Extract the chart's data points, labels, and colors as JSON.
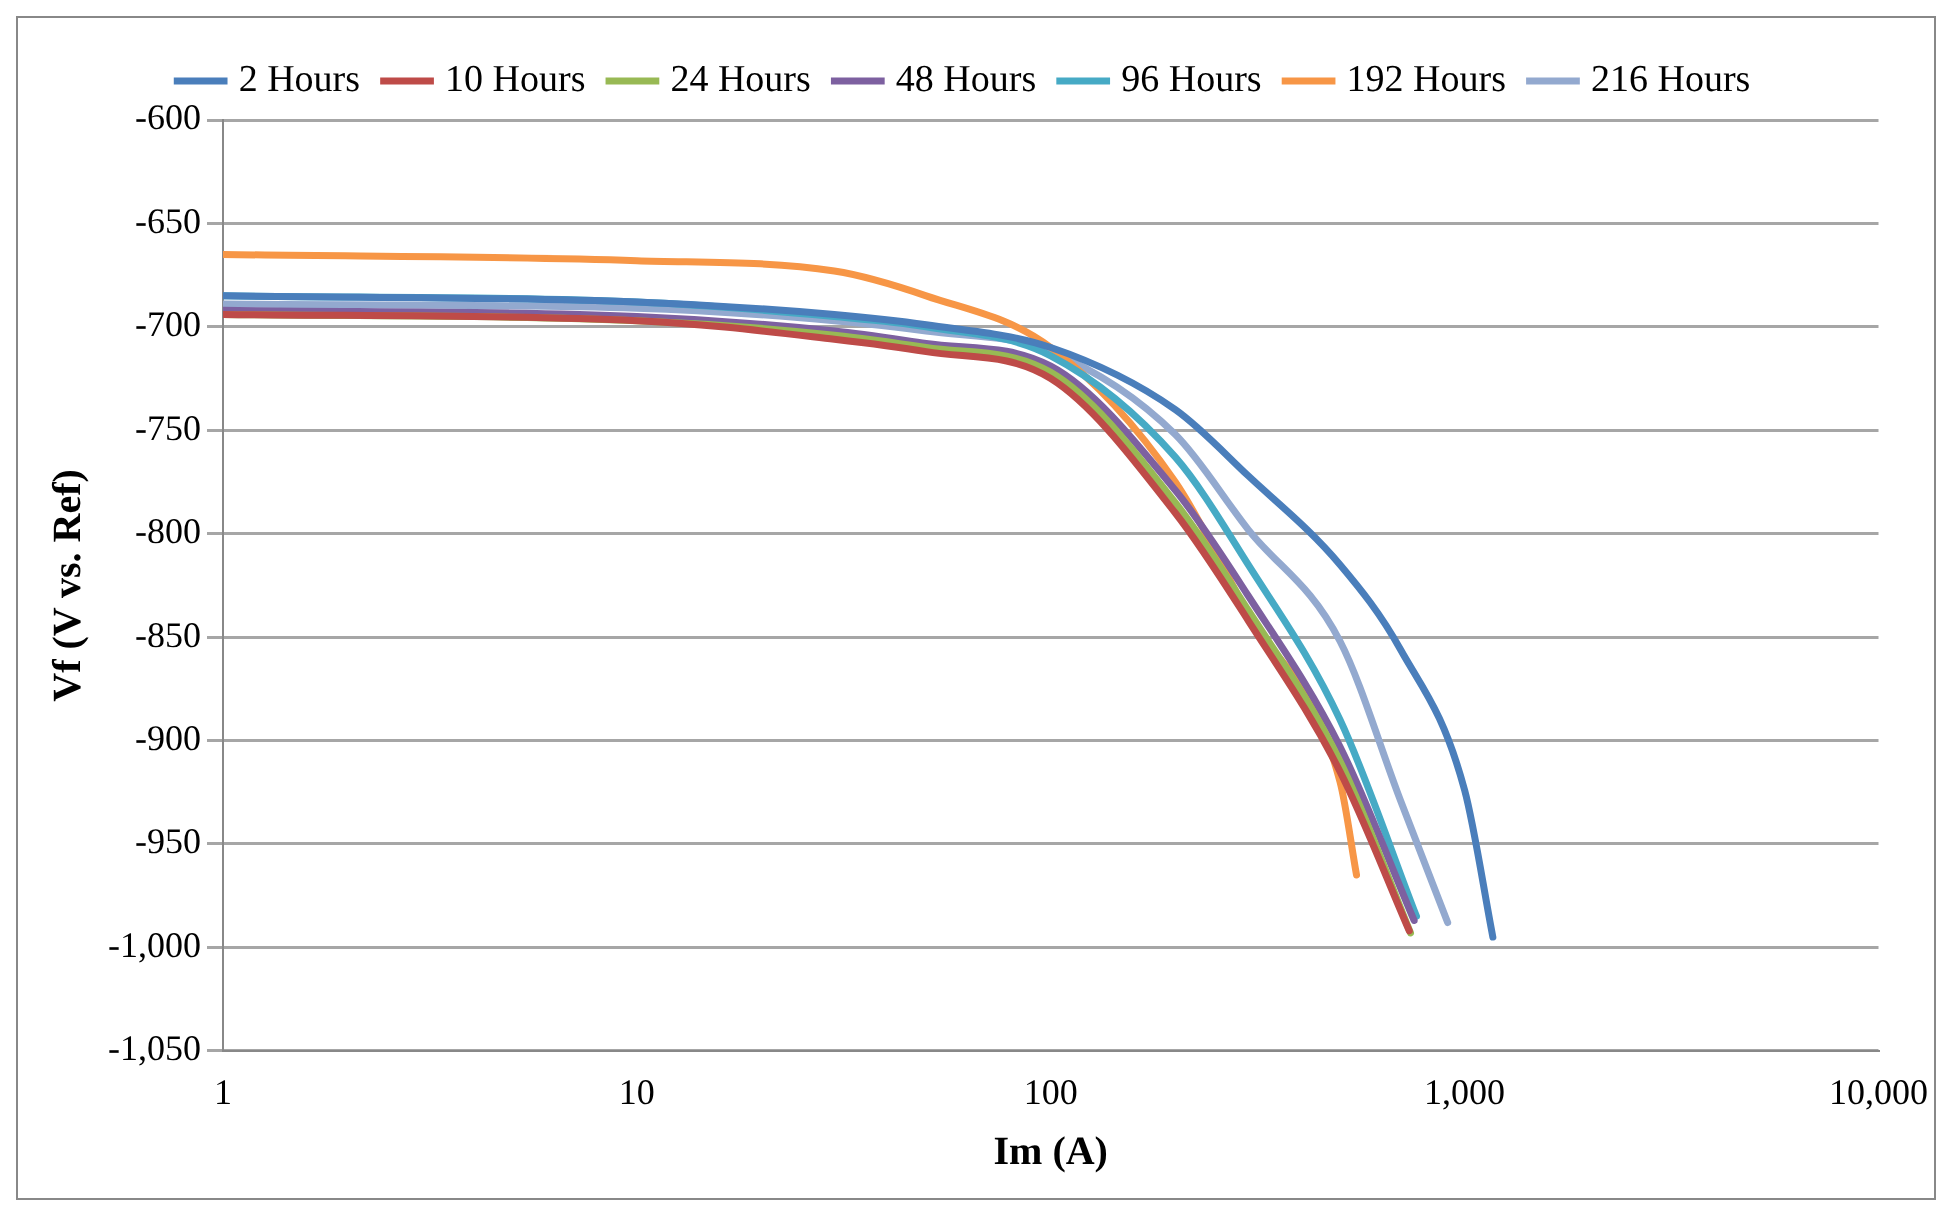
{
  "chart_data": {
    "type": "line",
    "xlabel": "Im (A)",
    "ylabel": "Vf (V vs. Ref)",
    "log": "x",
    "xlim": [
      1,
      10000
    ],
    "xticks": [
      1,
      10,
      100,
      {
        "value": 1000,
        "label": "1,000"
      },
      {
        "value": 10000,
        "label": "10,000"
      }
    ],
    "ylim": [
      -1050,
      -600
    ],
    "yticks": [
      -600,
      -650,
      -700,
      -750,
      -800,
      -850,
      -900,
      -950,
      {
        "value": -1000,
        "label": "-1,000"
      },
      {
        "value": -1050,
        "label": "-1,050"
      }
    ],
    "grid": "y",
    "legend": "top",
    "marker": "none",
    "line_style": "solid",
    "series": [
      {
        "name": "2 Hours",
        "color": "#4a7ebb",
        "x": [
          1,
          10,
          30,
          50,
          100,
          200,
          300,
          500,
          700,
          1000,
          1170
        ],
        "values": [
          -685,
          -688,
          -694,
          -699,
          -710,
          -740,
          -772,
          -815,
          -856,
          -924,
          -995
        ]
      },
      {
        "name": "10 Hours",
        "color": "#be4b48",
        "x": [
          1,
          10,
          30,
          50,
          100,
          200,
          300,
          500,
          735
        ],
        "values": [
          -694,
          -697,
          -706,
          -712,
          -725,
          -790,
          -842,
          -915,
          -992
        ]
      },
      {
        "name": "24 Hours",
        "color": "#98b954",
        "x": [
          1,
          10,
          30,
          50,
          100,
          200,
          300,
          500,
          740
        ],
        "values": [
          -694,
          -697,
          -704,
          -710,
          -722,
          -785,
          -837,
          -910,
          -993
        ]
      },
      {
        "name": "48 Hours",
        "color": "#7d60a0",
        "x": [
          1,
          10,
          30,
          50,
          100,
          200,
          300,
          500,
          755
        ],
        "values": [
          -692,
          -695,
          -702,
          -708,
          -719,
          -779,
          -830,
          -903,
          -987
        ]
      },
      {
        "name": "96 Hours",
        "color": "#46aac5",
        "x": [
          1,
          10,
          30,
          50,
          100,
          200,
          300,
          500,
          765
        ],
        "values": [
          -685,
          -688,
          -695,
          -700,
          -714,
          -763,
          -815,
          -890,
          -985
        ]
      },
      {
        "name": "192 Hours",
        "color": "#f79646",
        "x": [
          1,
          10,
          30,
          50,
          100,
          200,
          300,
          500,
          548
        ],
        "values": [
          -665,
          -668,
          -673,
          -685,
          -710,
          -775,
          -839,
          -920,
          -965
        ]
      },
      {
        "name": "216 Hours",
        "color": "#93a9cf",
        "x": [
          1,
          10,
          30,
          50,
          100,
          200,
          300,
          500,
          700,
          910
        ],
        "values": [
          -689,
          -691,
          -697,
          -702,
          -712,
          -752,
          -798,
          -852,
          -929,
          -988
        ]
      }
    ]
  }
}
